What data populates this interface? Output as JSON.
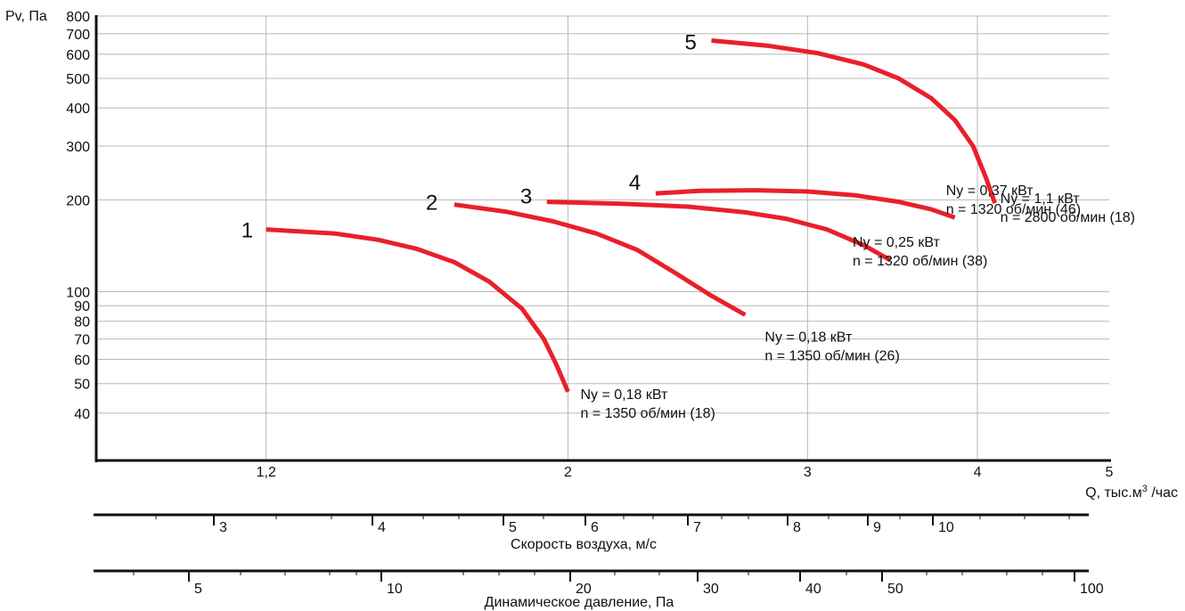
{
  "chart_data": {
    "type": "line",
    "x_scale": "log",
    "y_scale": "log",
    "xlim": [
      0.9,
      5
    ],
    "ylim": [
      28,
      800
    ],
    "grid": true,
    "y_axis_label": "Pv, Па",
    "x_axis_label_parts": {
      "prefix": "Q, тыс.м",
      "sup": "3",
      "suffix": " /час"
    },
    "y_ticks": [
      {
        "value": 800,
        "label": "800"
      },
      {
        "value": 700,
        "label": "700"
      },
      {
        "value": 600,
        "label": "600"
      },
      {
        "value": 500,
        "label": "500"
      },
      {
        "value": 400,
        "label": "400"
      },
      {
        "value": 300,
        "label": "300"
      },
      {
        "value": 200,
        "label": "200"
      },
      {
        "value": 100,
        "label": "100"
      },
      {
        "value": 90,
        "label": "90"
      },
      {
        "value": 80,
        "label": "80"
      },
      {
        "value": 70,
        "label": "70"
      },
      {
        "value": 60,
        "label": "60"
      },
      {
        "value": 50,
        "label": "50"
      },
      {
        "value": 40,
        "label": "40"
      }
    ],
    "x_ticks": [
      {
        "value": 1.2,
        "label": "1,2"
      },
      {
        "value": 2,
        "label": "2"
      },
      {
        "value": 3,
        "label": "3"
      },
      {
        "value": 4,
        "label": "4"
      },
      {
        "value": 5,
        "label": "5"
      }
    ],
    "series": [
      {
        "name": "1",
        "power_label": "Ny = 0,18 кВт",
        "speed_label": "n = 1350 об/мин (18)",
        "x": [
          1.2,
          1.35,
          1.45,
          1.55,
          1.65,
          1.75,
          1.85,
          1.92,
          1.96,
          2.0
        ],
        "y": [
          160,
          155,
          148,
          138,
          125,
          108,
          88,
          70,
          58,
          47
        ]
      },
      {
        "name": "2",
        "power_label": "Ny = 0,18 кВт",
        "speed_label": "n = 1350 об/мин (26)",
        "x": [
          1.65,
          1.8,
          1.95,
          2.1,
          2.25,
          2.4,
          2.55,
          2.7
        ],
        "y": [
          193,
          183,
          170,
          155,
          137,
          115,
          97,
          84
        ]
      },
      {
        "name": "3",
        "power_label": "Ny = 0,25 кВт",
        "speed_label": "n = 1320 об/мин (38)",
        "x": [
          1.93,
          2.2,
          2.45,
          2.7,
          2.9,
          3.1,
          3.3,
          3.45
        ],
        "y": [
          197,
          194,
          190,
          182,
          173,
          160,
          142,
          127
        ]
      },
      {
        "name": "4",
        "power_label": "Ny = 0,37 кВт",
        "speed_label": "n = 1320 об/мин (46)",
        "x": [
          2.32,
          2.5,
          2.75,
          3.0,
          3.25,
          3.5,
          3.7,
          3.85
        ],
        "y": [
          210,
          214,
          215,
          213,
          207,
          197,
          186,
          175
        ]
      },
      {
        "name": "5",
        "power_label": "Ny = 1,1 кВт",
        "speed_label": "n = 2800 об/мин (18)",
        "x": [
          2.55,
          2.8,
          3.05,
          3.3,
          3.5,
          3.7,
          3.85,
          3.97,
          4.06,
          4.12
        ],
        "y": [
          665,
          640,
          605,
          555,
          500,
          430,
          365,
          300,
          235,
          195
        ]
      }
    ],
    "velocity_scale": {
      "title": "Скорость воздуха, м/с",
      "ticks": [
        "3",
        "4",
        "5",
        "6",
        "7",
        "8",
        "9",
        "10"
      ]
    },
    "pressure_scale": {
      "title": "Динамическое давление, Па",
      "ticks": [
        "5",
        "10",
        "20",
        "30",
        "40",
        "50",
        "100"
      ]
    },
    "colors": {
      "curve": "#e8202a",
      "grid": "#b8b8b8",
      "axis": "#111111"
    }
  }
}
